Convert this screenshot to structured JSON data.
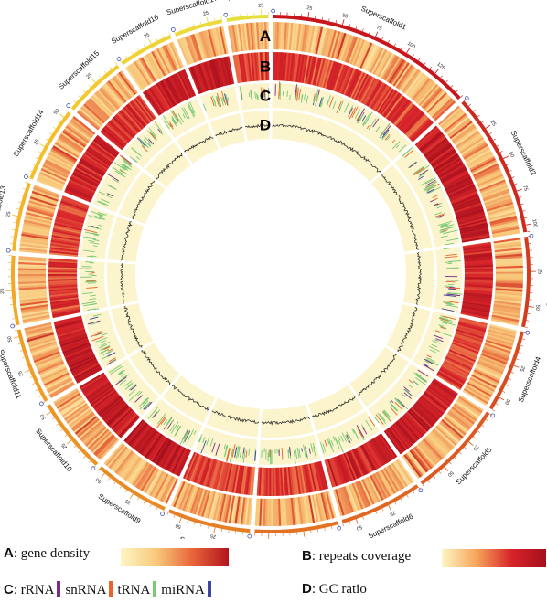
{
  "chart_data": {
    "type": "circos",
    "scaffolds": [
      {
        "name": "Superscaffold1",
        "length": 150,
        "ticks": [
          25,
          50,
          75,
          100,
          125
        ],
        "color": "#c8161d"
      },
      {
        "name": "Superscaffold2",
        "length": 105,
        "ticks": [
          25,
          50,
          75,
          100
        ],
        "color": "#cc2a1e"
      },
      {
        "name": "Superscaffold3",
        "length": 65,
        "ticks": [
          25,
          50
        ],
        "color": "#d23c1f"
      },
      {
        "name": "Superscaffold4",
        "length": 60,
        "ticks": [
          25,
          50
        ],
        "color": "#d84c20"
      },
      {
        "name": "Superscaffold5",
        "length": 70,
        "ticks": [
          25,
          50
        ],
        "color": "#dc5a21"
      },
      {
        "name": "Superscaffold6",
        "length": 60,
        "ticks": [
          25,
          50
        ],
        "color": "#e06722"
      },
      {
        "name": "Superscaffold7",
        "length": 60,
        "ticks": [
          25,
          50
        ],
        "color": "#e37323"
      },
      {
        "name": "Superscaffold8",
        "length": 60,
        "ticks": [
          25,
          50
        ],
        "color": "#e67f24"
      },
      {
        "name": "Superscaffold9",
        "length": 55,
        "ticks": [
          25,
          50
        ],
        "color": "#e98a25"
      },
      {
        "name": "Superscaffold10",
        "length": 55,
        "ticks": [
          25,
          50
        ],
        "color": "#eb9426"
      },
      {
        "name": "Superscaffold11",
        "length": 55,
        "ticks": [
          25,
          50
        ],
        "color": "#ee9e27"
      },
      {
        "name": "Superscaffold12",
        "length": 50,
        "ticks": [
          25
        ],
        "color": "#f0a928"
      },
      {
        "name": "Superscaffold13",
        "length": 50,
        "ticks": [
          25
        ],
        "color": "#f2b42a"
      },
      {
        "name": "Superscaffold14",
        "length": 55,
        "ticks": [
          25,
          50
        ],
        "color": "#f3bf2c"
      },
      {
        "name": "Superscaffold15",
        "length": 45,
        "ticks": [
          25
        ],
        "color": "#f2c92f"
      },
      {
        "name": "Superscaffold16",
        "length": 40,
        "ticks": [
          25
        ],
        "color": "#efd334"
      },
      {
        "name": "Superscaffold17",
        "length": 35,
        "ticks": [
          25
        ],
        "color": "#ebda3a"
      },
      {
        "name": "Superscaffold18",
        "length": 30,
        "ticks": [
          25
        ],
        "color": "#e6df40"
      }
    ],
    "tracks": [
      {
        "id": "A",
        "name": "gene density",
        "type": "heatmap",
        "colors": [
          "#fdf6c4",
          "#f8c87a",
          "#e8643a",
          "#b3141e"
        ]
      },
      {
        "id": "B",
        "name": "repeats coverage",
        "type": "heatmap",
        "colors": [
          "#fdf6c4",
          "#f6a45a",
          "#d8242a",
          "#a50f1c"
        ]
      },
      {
        "id": "C",
        "type": "tiles",
        "categories": [
          {
            "name": "rRNA",
            "color": "#7b2a86"
          },
          {
            "name": "snRNA",
            "color": "#e8642c"
          },
          {
            "name": "tRNA",
            "color": "#7ac878"
          },
          {
            "name": "miRNA",
            "color": "#3c46a0"
          }
        ]
      },
      {
        "id": "D",
        "name": "GC ratio",
        "type": "line",
        "color": "#333333"
      }
    ],
    "track_letters": [
      "A",
      "B",
      "C",
      "D"
    ]
  },
  "legend": {
    "a_letter": "A",
    "a_text": ": gene density",
    "b_letter": "B",
    "b_text": ": repeats coverage",
    "c_letter": "C",
    "c_text": ": rRNA",
    "c_items": [
      "snRNA",
      "tRNA",
      "miRNA"
    ],
    "d_letter": "D",
    "d_text": ": GC ratio"
  }
}
